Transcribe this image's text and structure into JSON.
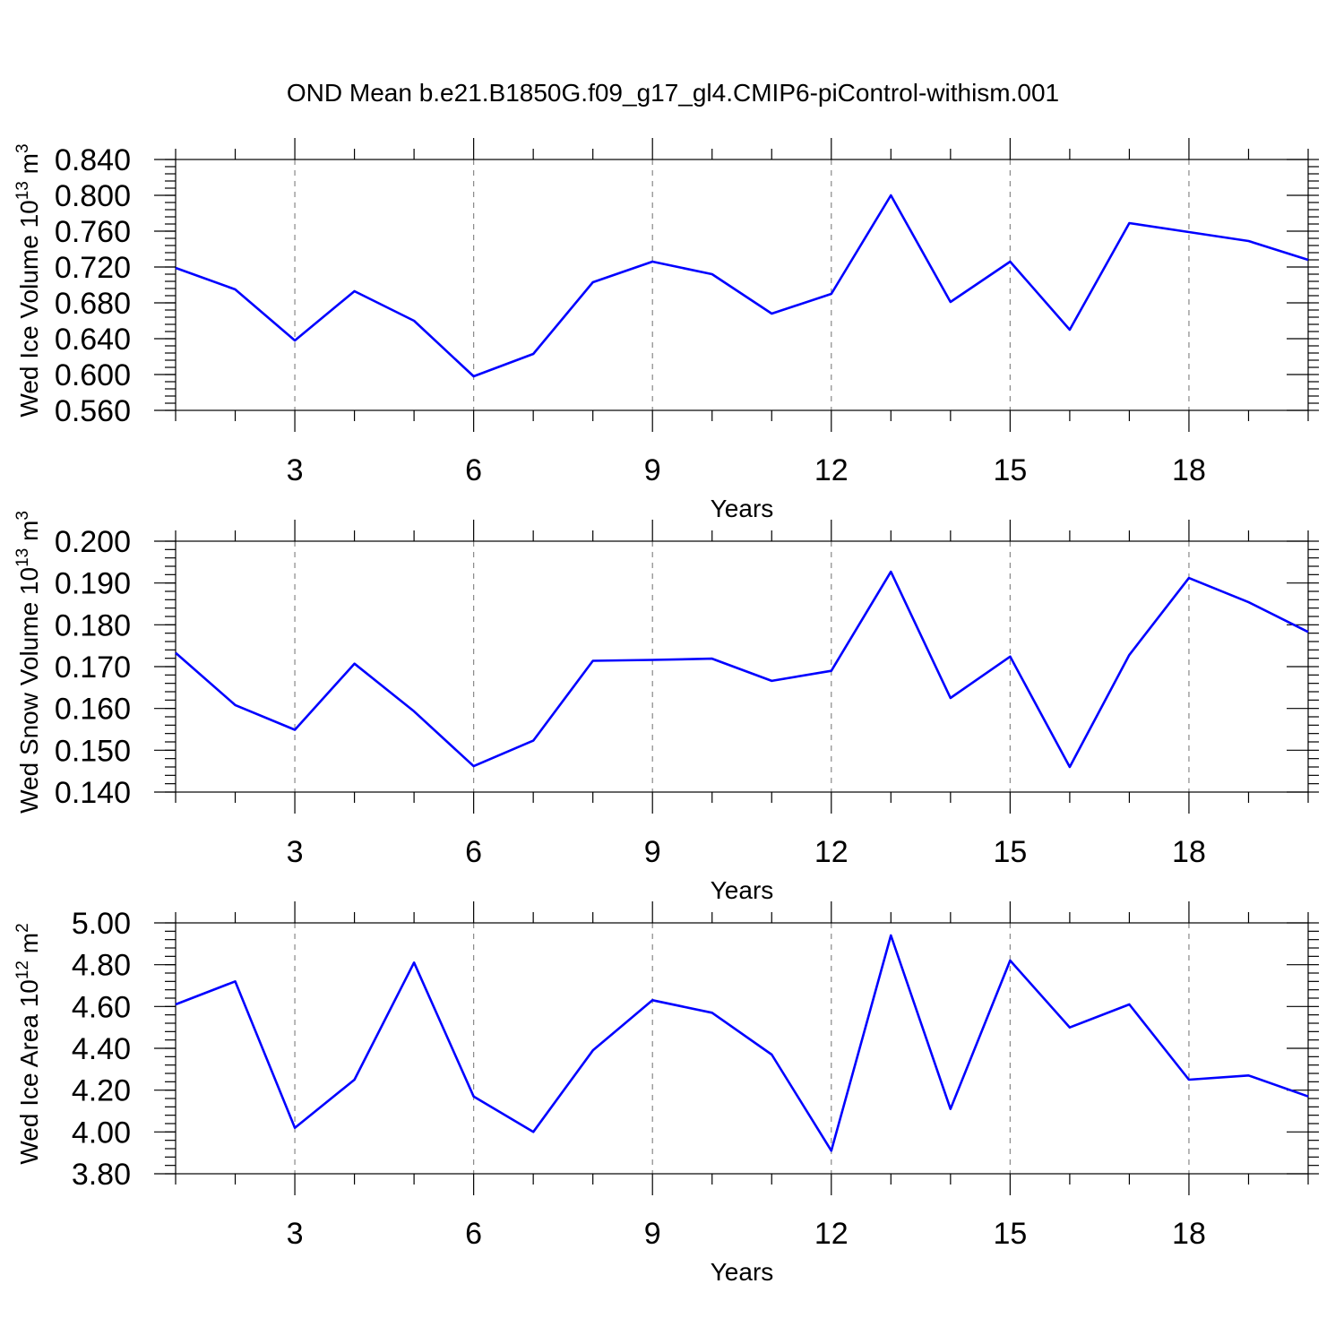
{
  "title": "OND Mean b.e21.B1850G.f09_g17_gl4.CMIP6-piControl-withism.001",
  "chart_data": [
    {
      "type": "line",
      "ylabel": "Wed Ice Volume 10",
      "ylabel_exp": "13",
      "ylabel_unit": " m",
      "ylabel_unit_exp": "3",
      "xlabel": "Years",
      "xlim": [
        1,
        20
      ],
      "ylim": [
        0.56,
        0.84
      ],
      "yticks": [
        0.56,
        0.6,
        0.64,
        0.68,
        0.72,
        0.76,
        0.8,
        0.84
      ],
      "yticklabels": [
        "0.560",
        "0.600",
        "0.640",
        "0.680",
        "0.720",
        "0.760",
        "0.800",
        "0.840"
      ],
      "yminor_step": 0.008,
      "xticks": [
        3,
        6,
        9,
        12,
        15,
        18
      ],
      "xticklabels": [
        "3",
        "6",
        "9",
        "12",
        "15",
        "18"
      ],
      "grid": "dashed vertical at major x ticks",
      "color": "#0000ff",
      "x": [
        1,
        2,
        3,
        4,
        5,
        6,
        7,
        8,
        9,
        10,
        11,
        12,
        13,
        14,
        15,
        16,
        17,
        18,
        19,
        20
      ],
      "values": [
        0.719,
        0.695,
        0.638,
        0.693,
        0.66,
        0.598,
        0.623,
        0.703,
        0.726,
        0.712,
        0.668,
        0.69,
        0.8,
        0.681,
        0.726,
        0.65,
        0.769,
        0.759,
        0.749,
        0.728
      ]
    },
    {
      "type": "line",
      "ylabel": "Wed Snow Volume 10",
      "ylabel_exp": "13",
      "ylabel_unit": " m",
      "ylabel_unit_exp": "3",
      "xlabel": "Years",
      "xlim": [
        1,
        20
      ],
      "ylim": [
        0.14,
        0.2
      ],
      "yticks": [
        0.14,
        0.15,
        0.16,
        0.17,
        0.18,
        0.19,
        0.2
      ],
      "yticklabels": [
        "0.140",
        "0.150",
        "0.160",
        "0.170",
        "0.180",
        "0.190",
        "0.200"
      ],
      "yminor_step": 0.002,
      "xticks": [
        3,
        6,
        9,
        12,
        15,
        18
      ],
      "xticklabels": [
        "3",
        "6",
        "9",
        "12",
        "15",
        "18"
      ],
      "grid": "dashed vertical at major x ticks",
      "color": "#0000ff",
      "x": [
        1,
        2,
        3,
        4,
        5,
        6,
        7,
        8,
        9,
        10,
        11,
        12,
        13,
        14,
        15,
        16,
        17,
        18,
        19,
        20
      ],
      "values": [
        0.1733,
        0.1608,
        0.1549,
        0.1707,
        0.1593,
        0.1462,
        0.1523,
        0.1714,
        0.1716,
        0.1719,
        0.1666,
        0.169,
        0.1927,
        0.1625,
        0.1724,
        0.146,
        0.1728,
        0.1912,
        0.1854,
        0.1783
      ]
    },
    {
      "type": "line",
      "ylabel": "Wed Ice Area 10",
      "ylabel_exp": "12",
      "ylabel_unit": " m",
      "ylabel_unit_exp": "2",
      "xlabel": "Years",
      "xlim": [
        1,
        20
      ],
      "ylim": [
        3.8,
        5.0
      ],
      "yticks": [
        3.8,
        4.0,
        4.2,
        4.4,
        4.6,
        4.8,
        5.0
      ],
      "yticklabels": [
        "3.80",
        "4.00",
        "4.20",
        "4.40",
        "4.60",
        "4.80",
        "5.00"
      ],
      "yminor_step": 0.04,
      "xticks": [
        3,
        6,
        9,
        12,
        15,
        18
      ],
      "xticklabels": [
        "3",
        "6",
        "9",
        "12",
        "15",
        "18"
      ],
      "grid": "dashed vertical at major x ticks",
      "color": "#0000ff",
      "x": [
        1,
        2,
        3,
        4,
        5,
        6,
        7,
        8,
        9,
        10,
        11,
        12,
        13,
        14,
        15,
        16,
        17,
        18,
        19,
        20
      ],
      "values": [
        4.61,
        4.72,
        4.02,
        4.25,
        4.81,
        4.17,
        4.0,
        4.39,
        4.63,
        4.57,
        4.37,
        3.91,
        4.94,
        4.11,
        4.82,
        4.5,
        4.61,
        4.25,
        4.27,
        4.17
      ]
    }
  ]
}
